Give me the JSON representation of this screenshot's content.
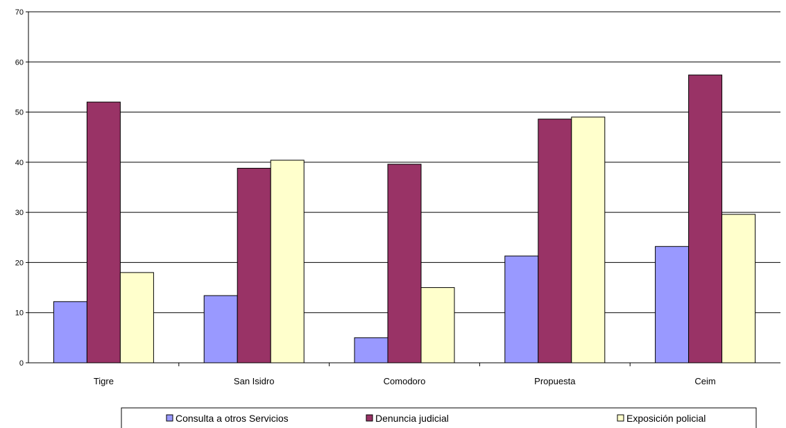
{
  "chart_data": {
    "type": "bar",
    "categories": [
      "Tigre",
      "San Isidro",
      "Comodoro",
      "Propuesta",
      "Ceim"
    ],
    "series": [
      {
        "name": "Consulta a otros Servicios",
        "color": "#9999ff",
        "values": [
          12.2,
          13.4,
          5.0,
          21.3,
          23.2
        ]
      },
      {
        "name": "Denuncia judicial",
        "color": "#993366",
        "values": [
          52.0,
          38.8,
          39.6,
          48.6,
          57.4
        ]
      },
      {
        "name": "Exposición policial",
        "color": "#ffffcc",
        "values": [
          18.0,
          40.4,
          15.0,
          49.0,
          29.6
        ]
      }
    ],
    "ylim": [
      0,
      70
    ],
    "yticks": [
      "0",
      "10",
      "20",
      "30",
      "40",
      "50",
      "60",
      "70"
    ],
    "grid": true,
    "legend_position": "bottom"
  }
}
